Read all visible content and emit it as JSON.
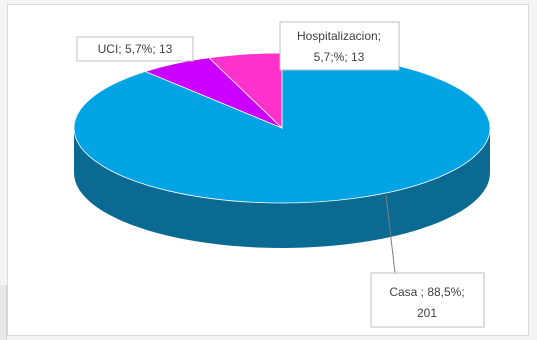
{
  "chart_data": {
    "type": "pie",
    "style": "3d",
    "title": "",
    "slices": [
      {
        "category": "Casa",
        "percent": 88.5,
        "count": 201,
        "label_lines": [
          "Casa  ; 88,5%;",
          "201"
        ],
        "color": "#00a4e4",
        "side_color": "#0a6a92"
      },
      {
        "category": "UCI",
        "percent": 5.7,
        "count": 13,
        "label_lines": [
          "UCI; 5,7%; 13"
        ],
        "color": "#cc00ff",
        "side_color": "#8a00ad"
      },
      {
        "category": "Hospitalizacion",
        "percent": 5.7,
        "count": 13,
        "label_lines": [
          "Hospitalizacion;",
          "5,7;%; 13"
        ],
        "color": "#ff33cc",
        "side_color": "#b3248f"
      }
    ]
  }
}
